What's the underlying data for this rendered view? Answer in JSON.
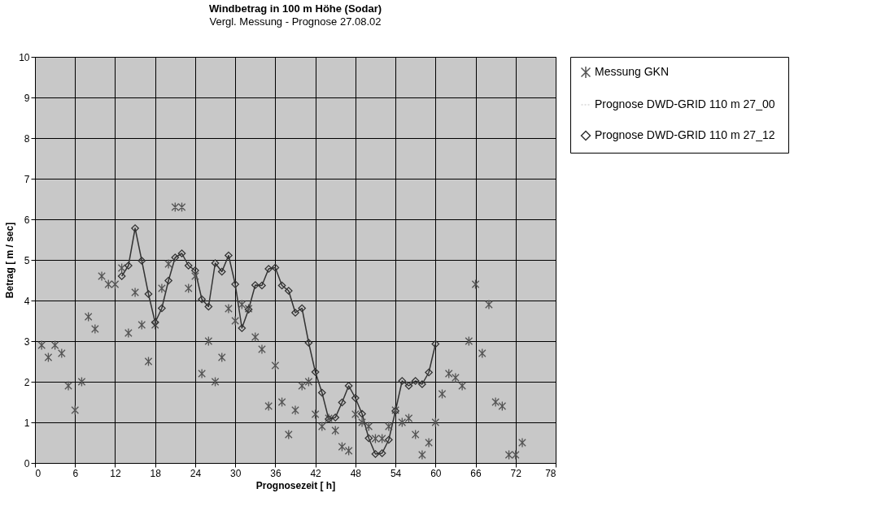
{
  "chart_data": {
    "type": "scatter",
    "title": "Windbetrag in 100 m Höhe (Sodar)",
    "subtitle": "Vergl. Messung - Prognose 27.08.02",
    "xlabel": "Prognosezeit [ h]",
    "ylabel": "Betrag [ m / sec]",
    "xlim": [
      0,
      78
    ],
    "xticks": [
      0,
      6,
      12,
      18,
      24,
      30,
      36,
      42,
      48,
      54,
      60,
      66,
      72,
      78
    ],
    "ylim": [
      0,
      10
    ],
    "yticks": [
      0,
      1,
      2,
      3,
      4,
      5,
      6,
      7,
      8,
      9,
      10
    ],
    "grid": true,
    "legend": "right",
    "series": [
      {
        "name": "Messung  GKN",
        "marker": "cross",
        "color": "#555555",
        "x": [
          1,
          2,
          3,
          4,
          5,
          6,
          7,
          8,
          9,
          10,
          11,
          12,
          13,
          14,
          15,
          16,
          17,
          18,
          19,
          20,
          21,
          22,
          23,
          24,
          25,
          26,
          27,
          28,
          29,
          30,
          31,
          32,
          33,
          34,
          35,
          36,
          37,
          38,
          39,
          40,
          41,
          42,
          43,
          44,
          45,
          46,
          47,
          48,
          49,
          50,
          51,
          52,
          53,
          54,
          55,
          56,
          57,
          58,
          59,
          60,
          61,
          62,
          63,
          64,
          65,
          66,
          67,
          68,
          69,
          70,
          71,
          72,
          73
        ],
        "values": [
          2.9,
          2.6,
          2.9,
          2.7,
          1.9,
          1.3,
          2.0,
          3.6,
          3.3,
          4.6,
          4.4,
          4.4,
          4.8,
          3.2,
          4.2,
          3.4,
          2.5,
          3.4,
          4.3,
          4.9,
          6.3,
          6.3,
          4.3,
          4.6,
          2.2,
          3.0,
          2.0,
          2.6,
          3.8,
          3.5,
          3.9,
          3.8,
          3.1,
          2.8,
          1.4,
          2.4,
          1.5,
          0.7,
          1.3,
          1.9,
          2.0,
          1.2,
          0.9,
          1.1,
          0.8,
          0.4,
          0.3,
          1.2,
          1.0,
          0.9,
          0.6,
          0.6,
          0.9,
          1.3,
          1.0,
          1.1,
          0.7,
          0.2,
          0.5,
          1.0,
          1.7,
          2.2,
          2.1,
          1.9,
          3.0,
          4.4,
          2.7,
          3.9,
          1.5,
          1.4,
          0.2,
          0.2,
          0.5
        ]
      },
      {
        "name": "Prognose DWD-GRID 110 m 27_00",
        "type": "line",
        "marker": "none",
        "line_style": "dotted",
        "color": "#d8d8d8"
      },
      {
        "name": "Prognose  DWD-GRID 110 m 27_12",
        "type": "line",
        "marker": "diamond",
        "line_style": "solid",
        "color": "#333333",
        "x": [
          13,
          14,
          15,
          16,
          17,
          18,
          19,
          20,
          21,
          22,
          23,
          24,
          25,
          26,
          27,
          28,
          29,
          30,
          31,
          32,
          33,
          34,
          35,
          36,
          37,
          38,
          39,
          40,
          41,
          42,
          43,
          44,
          45,
          46,
          47,
          48,
          49,
          50,
          51,
          52,
          53,
          54,
          55,
          56,
          57,
          58,
          59,
          60
        ],
        "values": [
          4.6,
          4.86,
          5.78,
          4.98,
          4.16,
          3.46,
          3.81,
          4.49,
          5.06,
          5.16,
          4.86,
          4.74,
          4.03,
          3.85,
          4.92,
          4.71,
          5.11,
          4.4,
          3.32,
          3.78,
          4.38,
          4.37,
          4.78,
          4.81,
          4.37,
          4.24,
          3.7,
          3.81,
          2.96,
          2.24,
          1.73,
          1.08,
          1.12,
          1.49,
          1.9,
          1.6,
          1.21,
          0.61,
          0.22,
          0.24,
          0.57,
          1.28,
          2.02,
          1.9,
          2.02,
          1.94,
          2.23,
          2.93
        ]
      }
    ]
  }
}
